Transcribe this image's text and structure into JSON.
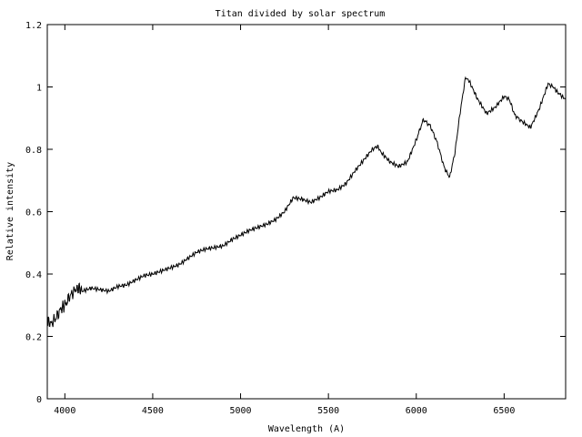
{
  "chart_data": {
    "type": "line",
    "title": "Titan divided by solar spectrum",
    "xlabel": "Wavelength (A)",
    "ylabel": "Relative intensity",
    "xlim": [
      3900,
      6850
    ],
    "ylim": [
      0,
      1.2
    ],
    "x_ticks": [
      4000,
      4500,
      5000,
      5500,
      6000,
      6500
    ],
    "x_tick_labels": [
      "4000",
      "4500",
      "5000",
      "5500",
      "6000",
      "6500"
    ],
    "y_ticks": [
      0,
      0.2,
      0.4,
      0.6,
      0.8,
      1.0,
      1.2
    ],
    "y_tick_labels": [
      "0",
      "0.2",
      "0.4",
      "0.6",
      "0.8",
      "1",
      "1.2"
    ],
    "grid": false,
    "legend": "none",
    "series": [
      {
        "color": "#000000",
        "x": [
          3900,
          3920,
          3950,
          3980,
          4000,
          4030,
          4060,
          4080,
          4100,
          4150,
          4200,
          4250,
          4300,
          4350,
          4400,
          4450,
          4500,
          4550,
          4600,
          4650,
          4700,
          4750,
          4800,
          4850,
          4900,
          4950,
          5000,
          5050,
          5100,
          5150,
          5200,
          5250,
          5300,
          5350,
          5400,
          5450,
          5500,
          5550,
          5600,
          5650,
          5700,
          5750,
          5780,
          5800,
          5850,
          5900,
          5950,
          6000,
          6040,
          6080,
          6120,
          6160,
          6190,
          6220,
          6250,
          6280,
          6300,
          6350,
          6400,
          6450,
          6500,
          6530,
          6560,
          6600,
          6650,
          6700,
          6750,
          6780,
          6800,
          6830,
          6850
        ],
        "y": [
          0.25,
          0.24,
          0.26,
          0.29,
          0.3,
          0.33,
          0.35,
          0.355,
          0.345,
          0.355,
          0.35,
          0.345,
          0.36,
          0.365,
          0.38,
          0.395,
          0.4,
          0.41,
          0.42,
          0.43,
          0.45,
          0.47,
          0.48,
          0.485,
          0.49,
          0.51,
          0.525,
          0.54,
          0.55,
          0.56,
          0.575,
          0.6,
          0.645,
          0.64,
          0.63,
          0.645,
          0.665,
          0.67,
          0.69,
          0.73,
          0.765,
          0.8,
          0.81,
          0.79,
          0.76,
          0.745,
          0.76,
          0.83,
          0.895,
          0.875,
          0.82,
          0.74,
          0.71,
          0.79,
          0.92,
          1.03,
          1.02,
          0.96,
          0.915,
          0.935,
          0.97,
          0.96,
          0.91,
          0.89,
          0.87,
          0.93,
          1.01,
          1.0,
          0.985,
          0.97,
          0.96
        ]
      }
    ]
  }
}
